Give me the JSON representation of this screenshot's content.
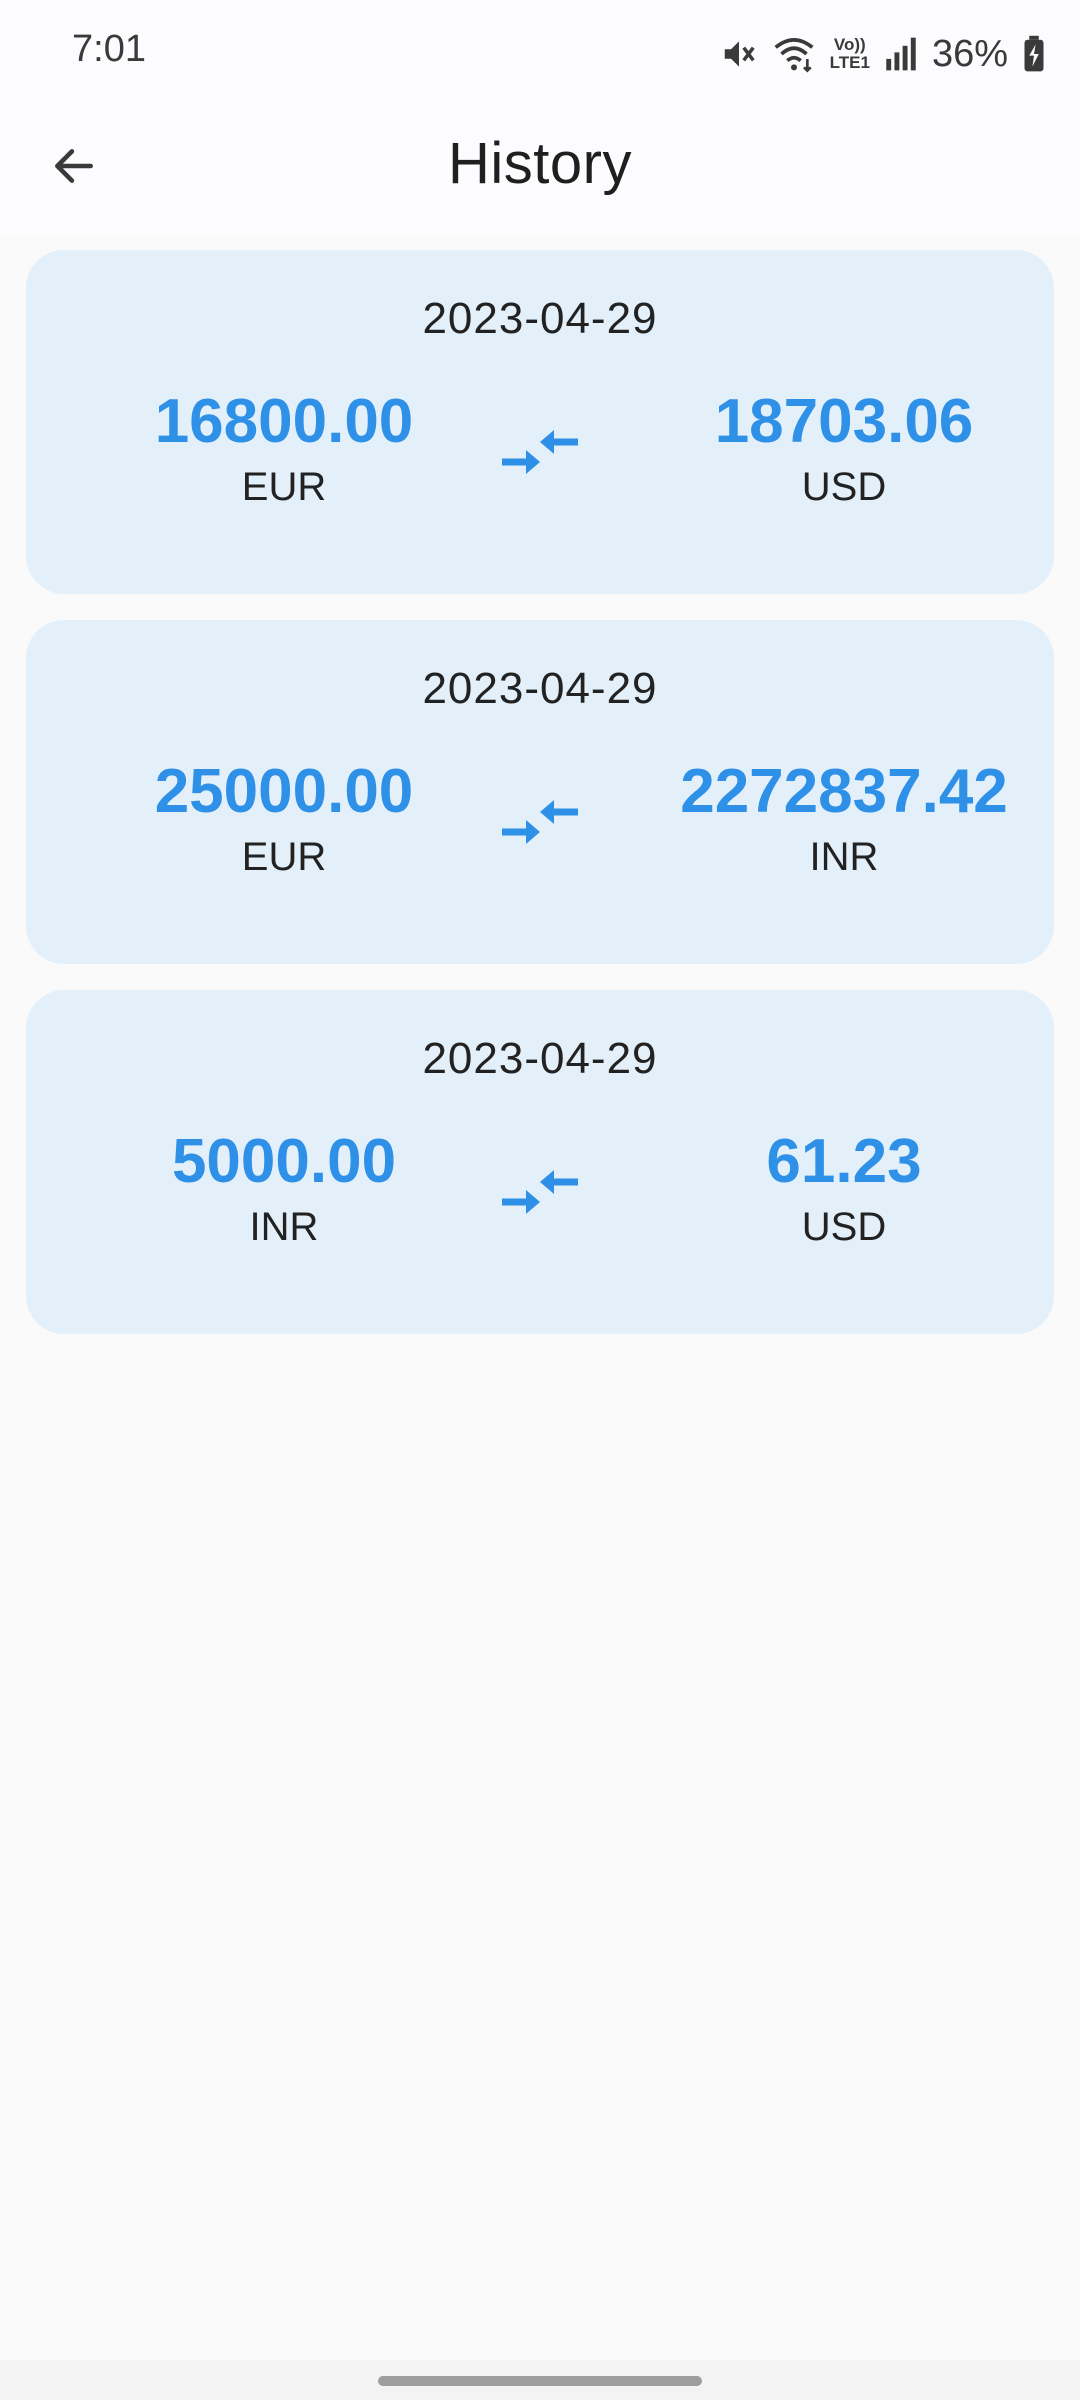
{
  "status_bar": {
    "time": "7:01",
    "battery": "36%",
    "volte_top": "Vo))",
    "volte_bottom": "LTE1",
    "icons": [
      "mute-icon",
      "wifi-icon",
      "volte-icon",
      "signal-icon",
      "battery-charging-icon"
    ]
  },
  "app_bar": {
    "back_icon": "arrow-left-icon",
    "title": "History"
  },
  "history": [
    {
      "date": "2023-04-29",
      "from_amount": "16800.00",
      "from_currency": "EUR",
      "to_amount": "18703.06",
      "to_currency": "USD"
    },
    {
      "date": "2023-04-29",
      "from_amount": "25000.00",
      "from_currency": "EUR",
      "to_amount": "2272837.42",
      "to_currency": "INR"
    },
    {
      "date": "2023-04-29",
      "from_amount": "5000.00",
      "from_currency": "INR",
      "to_amount": "61.23",
      "to_currency": "USD"
    }
  ],
  "colors": {
    "accent": "#2e90e6",
    "card_background": "#e3f0fa",
    "page_background": "#fafafa",
    "text": "#222222"
  },
  "swap_icon": "compare-arrows-icon"
}
